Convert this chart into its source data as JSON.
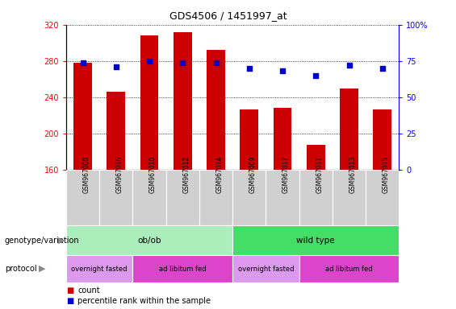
{
  "title": "GDS4506 / 1451997_at",
  "samples": [
    "GSM967008",
    "GSM967016",
    "GSM967010",
    "GSM967012",
    "GSM967014",
    "GSM967009",
    "GSM967017",
    "GSM967011",
    "GSM967013",
    "GSM967015"
  ],
  "counts": [
    278,
    246,
    308,
    312,
    292,
    227,
    228,
    188,
    250,
    227
  ],
  "percentile_ranks": [
    74,
    71,
    75,
    74,
    74,
    70,
    68,
    65,
    72,
    70
  ],
  "ylim_left": [
    160,
    320
  ],
  "ylim_right": [
    0,
    100
  ],
  "yticks_left": [
    160,
    200,
    240,
    280,
    320
  ],
  "yticks_right": [
    0,
    25,
    50,
    75,
    100
  ],
  "bar_color": "#cc0000",
  "scatter_color": "#0000cc",
  "plot_bg": "#ffffff",
  "sample_label_bg": "#d0d0d0",
  "genotype_groups": [
    {
      "label": "ob/ob",
      "start": 0,
      "end": 5,
      "color": "#aaeebb"
    },
    {
      "label": "wild type",
      "start": 5,
      "end": 10,
      "color": "#44dd66"
    }
  ],
  "protocol_groups": [
    {
      "label": "overnight fasted",
      "start": 0,
      "end": 2,
      "color": "#dd99ee"
    },
    {
      "label": "ad libitum fed",
      "start": 2,
      "end": 5,
      "color": "#dd44cc"
    },
    {
      "label": "overnight fasted",
      "start": 5,
      "end": 7,
      "color": "#dd99ee"
    },
    {
      "label": "ad libitum fed",
      "start": 7,
      "end": 10,
      "color": "#dd44cc"
    }
  ],
  "legend_items": [
    {
      "label": "count",
      "color": "#cc0000"
    },
    {
      "label": "percentile rank within the sample",
      "color": "#0000cc"
    }
  ],
  "left_labels": [
    {
      "text": "genotype/variation",
      "arrow": "▶"
    },
    {
      "text": "protocol",
      "arrow": "▶"
    }
  ]
}
